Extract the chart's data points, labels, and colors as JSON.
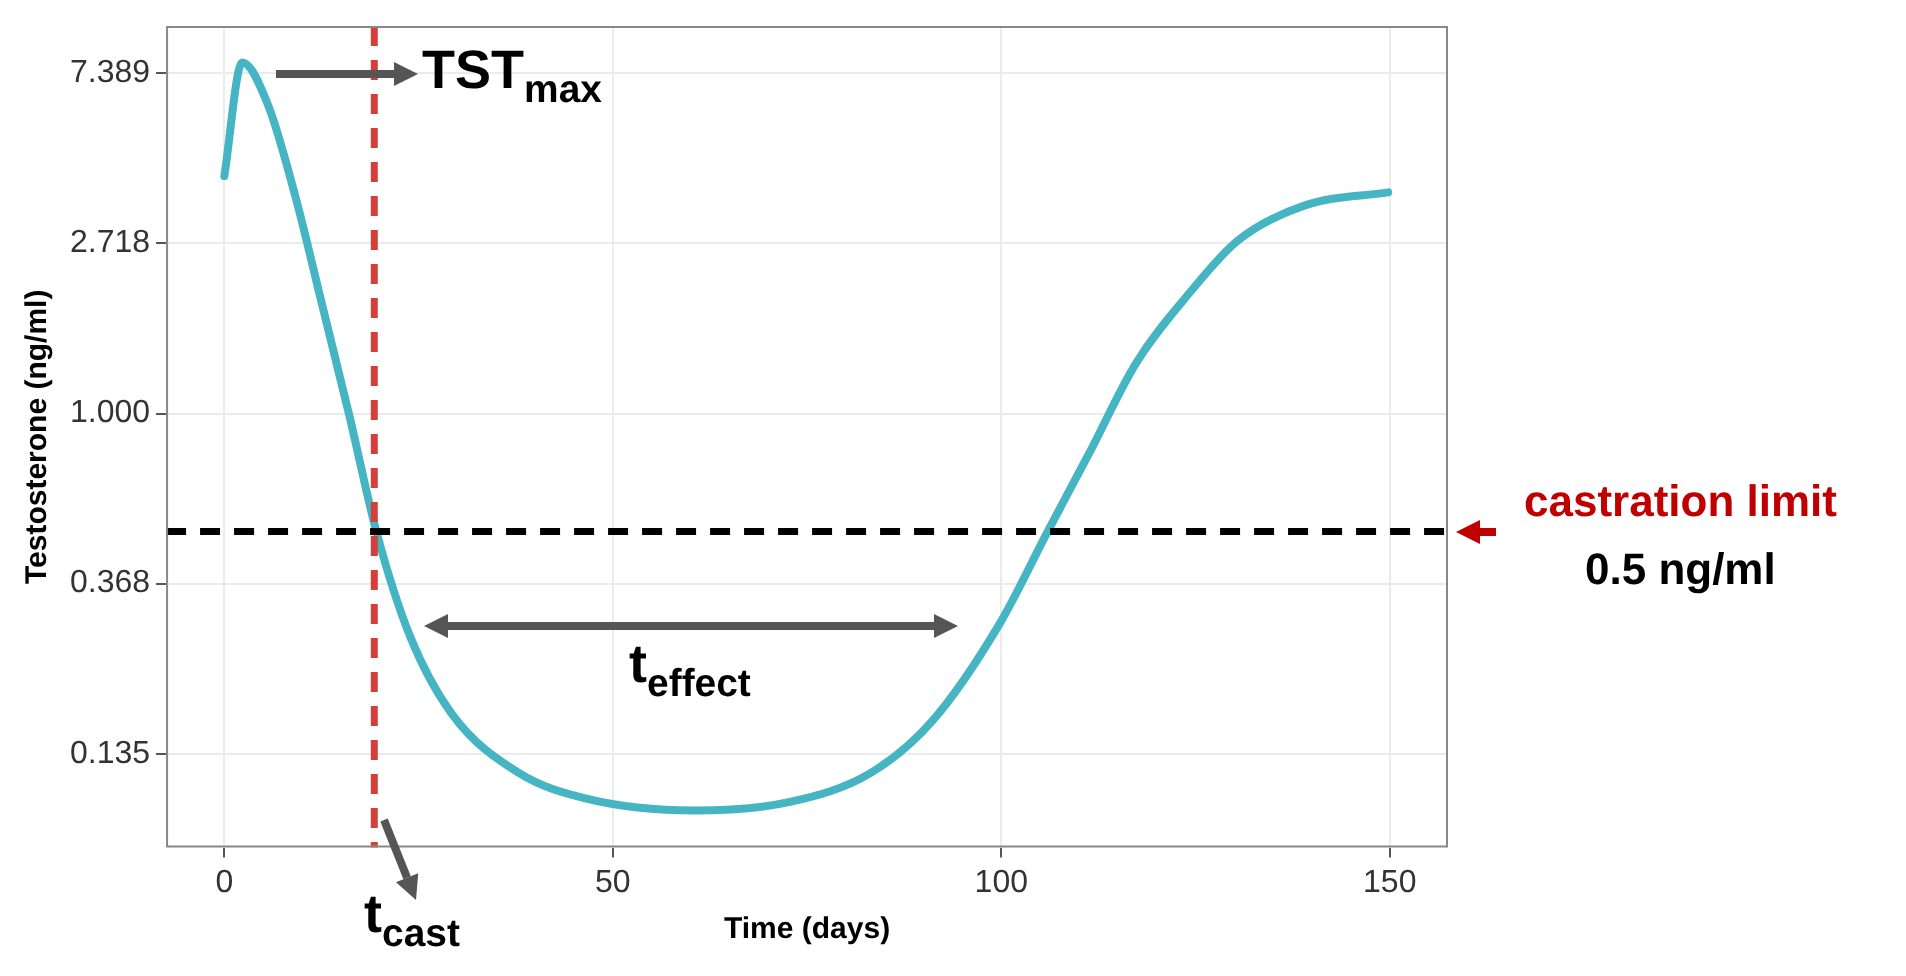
{
  "chart_data": {
    "type": "line",
    "xlabel": "Time (days)",
    "ylabel": "Testosterone (ng/ml)",
    "log": "y",
    "grid": true,
    "legend": false,
    "marker": "none",
    "xlim": [
      -7.5,
      157.5
    ],
    "xticks": [
      0,
      50,
      100,
      150
    ],
    "ylim": [
      0.078,
      9.76
    ],
    "yticks": [
      0.135,
      0.368,
      {
        "value": 1,
        "label": "1.000"
      },
      2.718,
      7.389
    ],
    "series": [
      {
        "color": "#45b5c4",
        "x": [
          0,
          2.3,
          5.6,
          9.1,
          12.6,
          16.1,
          19.6,
          23.9,
          29.3,
          37.9,
          46.6,
          60.5,
          72.8,
          83.2,
          91.1,
          99.8,
          105.9,
          111.2,
          117.3,
          124.3,
          130.4,
          139.1,
          149.8
        ],
        "values": [
          4.04,
          7.88,
          6.15,
          3.61,
          1.89,
          0.986,
          0.497,
          0.27,
          0.171,
          0.121,
          0.104,
          0.097,
          0.102,
          0.121,
          0.164,
          0.291,
          0.497,
          0.784,
          1.34,
          2.04,
          2.76,
          3.4,
          3.67
        ]
      }
    ],
    "ref_lines": [
      {
        "axis": "x",
        "value": 19.3,
        "color": "#d43f3a",
        "line_style": "dashed"
      },
      {
        "axis": "y",
        "value": 0.5,
        "label": "castration limit",
        "color": "#000000",
        "line_style": "dashed"
      }
    ],
    "annotations": [
      "TST$_{max}$",
      "t$_{effect}$",
      "t$_{cast}$",
      "0.5 ng/ml"
    ]
  }
}
